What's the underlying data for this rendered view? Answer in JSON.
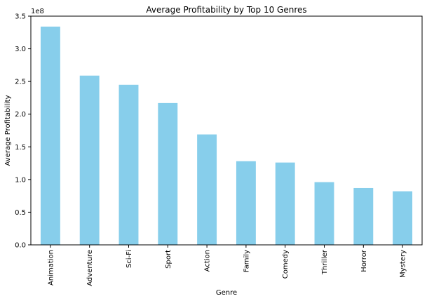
{
  "chart_data": {
    "type": "bar",
    "title": "Average Profitability by Top 10 Genres",
    "xlabel": "Genre",
    "ylabel": "Average Profitability",
    "y_offset_label": "1e8",
    "y_ticks": [
      "0.0",
      "0.5",
      "1.0",
      "1.5",
      "2.0",
      "2.5",
      "3.0",
      "3.5"
    ],
    "ylim": [
      0,
      3.5
    ],
    "y_scale": 100000000,
    "categories": [
      "Animation",
      "Adventure",
      "Sci-Fi",
      "Sport",
      "Action",
      "Family",
      "Comedy",
      "Thriller",
      "Horror",
      "Mystery"
    ],
    "values": [
      3.34,
      2.59,
      2.45,
      2.17,
      1.69,
      1.28,
      1.26,
      0.96,
      0.87,
      0.82
    ],
    "bar_color": "#87ceeb",
    "grid": false
  }
}
